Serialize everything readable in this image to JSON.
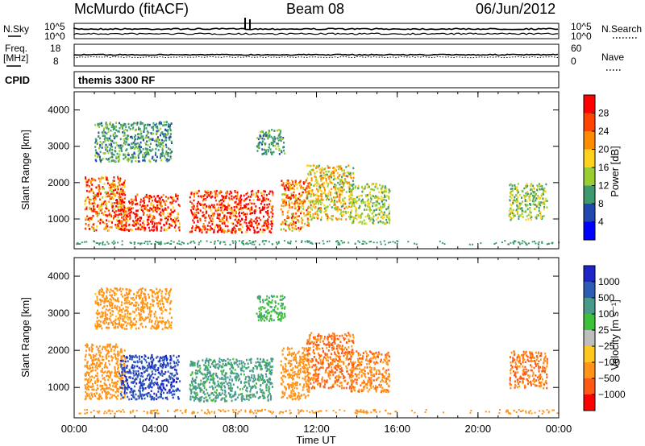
{
  "header": {
    "station": "McMurdo (fitACF)",
    "beam": "Beam 08",
    "date": "06/Jun/2012"
  },
  "top_panels": {
    "nsky_label": "N.Sky",
    "nsearch_label": "N.Search",
    "noise_left_ticks": [
      "10^5",
      "10^0"
    ],
    "noise_right_ticks": [
      "10^5",
      "10^0"
    ],
    "freq_label_1": "Freq.",
    "freq_label_2": "[MHz]",
    "freq_ticks": [
      "18",
      "8"
    ],
    "nave_label": "Nave",
    "nave_ticks": [
      "60",
      "0"
    ],
    "cpid_label": "CPID",
    "cpid_value": "themis 3300 RF"
  },
  "colorbars": {
    "power": {
      "label": "Power [dB]",
      "ticks": [
        "28",
        "24",
        "20",
        "16",
        "12",
        "8",
        "4"
      ],
      "colors": [
        "#ff0000",
        "#ff4400",
        "#ff8c00",
        "#ffd21e",
        "#9acd32",
        "#3c9a6e",
        "#2048b0",
        "#0000ff"
      ]
    },
    "velocity": {
      "label": "Velocity [m s⁻¹]",
      "ticks": [
        "1000",
        "500",
        "100",
        "25",
        "−25",
        "−100",
        "−500",
        "−1000"
      ],
      "colors": [
        "#1e24c8",
        "#2e5cb4",
        "#4a9a8c",
        "#3fc03a",
        "#bebebe",
        "#ffc81e",
        "#ff9418",
        "#ff5a14",
        "#ff0000"
      ]
    }
  },
  "chart_data": [
    {
      "type": "heatmap",
      "panel": "power",
      "ylabel": "Slant Range [km]",
      "xlabel": "Time UT",
      "x_ticks": [
        "00:00",
        "04:00",
        "08:00",
        "12:00",
        "16:00",
        "20:00",
        "00:00"
      ],
      "y_ticks": [
        "1000",
        "2000",
        "3000",
        "4000"
      ],
      "xlim_hours": [
        0,
        24
      ],
      "ylim_km": [
        180,
        4500
      ],
      "grid": false,
      "colorbar": "Power [dB]",
      "scatter_regions": [
        {
          "t": [
            0.5,
            2.5
          ],
          "r": [
            700,
            2200
          ],
          "v": 22
        },
        {
          "t": [
            2.2,
            5.2
          ],
          "r": [
            700,
            1700
          ],
          "v": 27
        },
        {
          "t": [
            5.7,
            9.8
          ],
          "r": [
            650,
            1800
          ],
          "v": 27
        },
        {
          "t": [
            10.2,
            11.6
          ],
          "r": [
            700,
            2100
          ],
          "v": 20
        },
        {
          "t": [
            11.5,
            13.8
          ],
          "r": [
            1000,
            2500
          ],
          "v": 16
        },
        {
          "t": [
            13.6,
            15.6
          ],
          "r": [
            900,
            2000
          ],
          "v": 12
        },
        {
          "t": [
            21.5,
            23.4
          ],
          "r": [
            1000,
            2000
          ],
          "v": 12
        },
        {
          "t": [
            1.0,
            4.8
          ],
          "r": [
            2600,
            3700
          ],
          "v": 8
        },
        {
          "t": [
            9.0,
            10.4
          ],
          "r": [
            2800,
            3500
          ],
          "v": 8
        }
      ]
    },
    {
      "type": "heatmap",
      "panel": "velocity",
      "ylabel": "Slant Range [km]",
      "xlabel": "Time UT",
      "x_ticks": [
        "00:00",
        "04:00",
        "08:00",
        "12:00",
        "16:00",
        "20:00",
        "00:00"
      ],
      "y_ticks": [
        "1000",
        "2000",
        "3000",
        "4000"
      ],
      "xlim_hours": [
        0,
        24
      ],
      "ylim_km": [
        180,
        4500
      ],
      "grid": false,
      "colorbar": "Velocity [m s⁻¹]",
      "scatter_regions": [
        {
          "t": [
            0.5,
            2.5
          ],
          "r": [
            700,
            2200
          ],
          "v": -200
        },
        {
          "t": [
            2.2,
            5.2
          ],
          "r": [
            700,
            1900
          ],
          "v": 700
        },
        {
          "t": [
            5.7,
            9.8
          ],
          "r": [
            650,
            1800
          ],
          "v": 80
        },
        {
          "t": [
            10.2,
            11.6
          ],
          "r": [
            700,
            2100
          ],
          "v": -150
        },
        {
          "t": [
            11.5,
            13.8
          ],
          "r": [
            1000,
            2500
          ],
          "v": -300
        },
        {
          "t": [
            13.6,
            15.6
          ],
          "r": [
            900,
            2000
          ],
          "v": -250
        },
        {
          "t": [
            21.5,
            23.4
          ],
          "r": [
            1000,
            2000
          ],
          "v": -300
        },
        {
          "t": [
            1.0,
            4.8
          ],
          "r": [
            2600,
            3700
          ],
          "v": -100
        },
        {
          "t": [
            9.0,
            10.4
          ],
          "r": [
            2800,
            3500
          ],
          "v": 50
        }
      ]
    }
  ]
}
